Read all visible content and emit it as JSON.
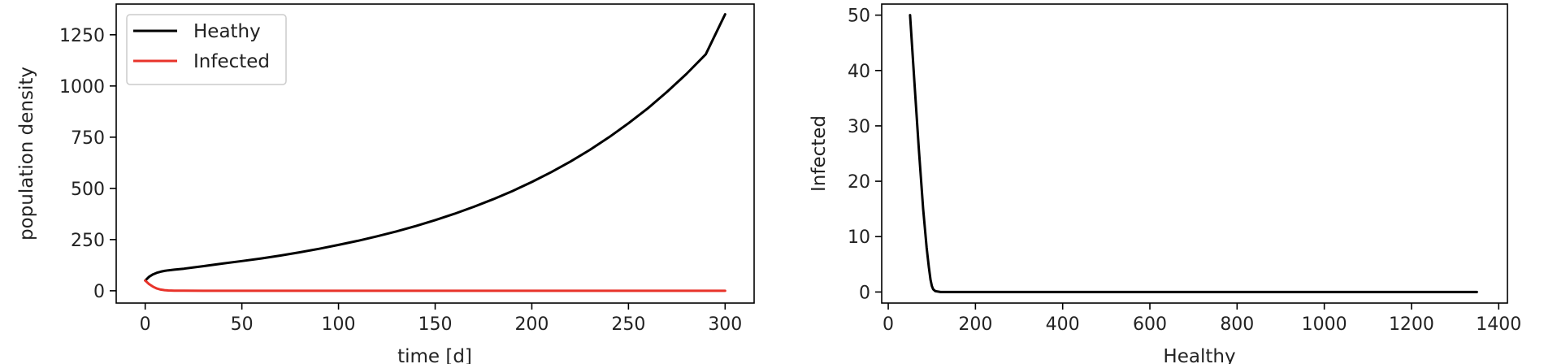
{
  "chart_data": [
    {
      "type": "line",
      "xlabel": "time [d]",
      "ylabel": "population density",
      "xlim": [
        -15,
        315
      ],
      "ylim": [
        -60,
        1400
      ],
      "xticks": [
        0,
        50,
        100,
        150,
        200,
        250,
        300
      ],
      "yticks": [
        0,
        250,
        500,
        750,
        1000,
        1250
      ],
      "legend": "upper-left",
      "grid": false,
      "series": [
        {
          "name": "Heathy",
          "color": "#000000",
          "x": [
            0,
            2,
            4,
            6,
            8,
            10,
            12,
            15,
            20,
            25,
            30,
            40,
            50,
            60,
            70,
            80,
            90,
            100,
            110,
            120,
            130,
            140,
            150,
            160,
            170,
            180,
            190,
            200,
            210,
            220,
            230,
            240,
            250,
            260,
            270,
            280,
            290,
            300
          ],
          "y": [
            50,
            68,
            80,
            88,
            93,
            97,
            100,
            103,
            108,
            114,
            120,
            133,
            145,
            158,
            172,
            188,
            205,
            224,
            244,
            266,
            290,
            316,
            345,
            376,
            410,
            447,
            487,
            531,
            579,
            631,
            688,
            750,
            818,
            891,
            972,
            1059,
            1155,
            1350
          ]
        },
        {
          "name": "Infected",
          "color": "#e8332a",
          "x": [
            0,
            2,
            4,
            6,
            8,
            10,
            12,
            15,
            20,
            30,
            50,
            100,
            150,
            200,
            250,
            300
          ],
          "y": [
            50,
            33,
            20,
            11,
            6,
            3,
            1.5,
            0.6,
            0.2,
            0,
            0,
            0,
            0,
            0,
            0,
            0
          ]
        }
      ]
    },
    {
      "type": "line",
      "xlabel": "Healthy",
      "ylabel": "Infected",
      "xlim": [
        -15,
        1420
      ],
      "ylim": [
        -2,
        52
      ],
      "xticks": [
        0,
        200,
        400,
        600,
        800,
        1000,
        1200,
        1400
      ],
      "yticks": [
        0,
        10,
        20,
        30,
        40,
        50
      ],
      "grid": false,
      "series": [
        {
          "color": "#000000",
          "x": [
            50,
            60,
            70,
            80,
            88,
            93,
            97,
            100,
            103,
            108,
            120,
            200,
            400,
            600,
            800,
            1000,
            1200,
            1350
          ],
          "y": [
            50,
            38,
            26,
            15,
            8,
            4.5,
            2.2,
            1.1,
            0.5,
            0.15,
            0,
            0,
            0,
            0,
            0,
            0,
            0,
            0
          ]
        }
      ]
    }
  ]
}
